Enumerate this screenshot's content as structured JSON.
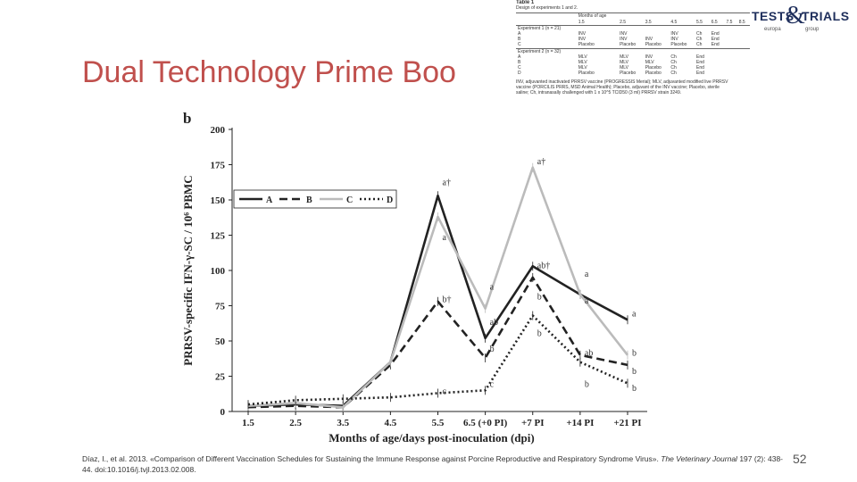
{
  "slide": {
    "title": "Dual Technology Prime Boo",
    "citation_prefix": "Díaz, I., et al. 2013. «Comparison of Different Vaccination Schedules for Sustaining the Immune Response against Porcine Reproductive and Respiratory Syndrome Virus».",
    "citation_journal": "The Veterinary Journal",
    "citation_suffix": "197 (2): 438-44. doi:10.1016/j.tvjl.2013.02.008.",
    "page_number": "52",
    "logo_text_1": "TESTS",
    "logo_amp": "&",
    "logo_text_2": "TRIALS",
    "logo_sub_1": "europa",
    "logo_sub_2": "group"
  },
  "table": {
    "title": "Table 1",
    "subtitle": "Design of experiments 1 and 2.",
    "months_header": "Months of age",
    "months": [
      "1.5",
      "2.5",
      "3.5",
      "4.5",
      "5.5",
      "6.5",
      "7.5",
      "8.5"
    ],
    "exp1_label": "Experiment 1 (n = 21)",
    "exp1_rows": [
      [
        "A",
        "INV",
        "INV",
        "",
        "INV",
        "Ch",
        "End"
      ],
      [
        "B",
        "INV",
        "INV",
        "INV",
        "INV",
        "Ch",
        "End"
      ],
      [
        "C",
        "Placebo",
        "Placebo",
        "Placebo",
        "Placebo",
        "Ch",
        "End"
      ]
    ],
    "exp2_label": "Experiment 2 (n = 32)",
    "exp2_rows": [
      [
        "A",
        "MLV",
        "MLV",
        "INV",
        "Ch",
        "End"
      ],
      [
        "B",
        "MLV",
        "MLV",
        "MLV",
        "Ch",
        "End"
      ],
      [
        "C",
        "MLV",
        "MLV",
        "Placebo",
        "Ch",
        "End"
      ],
      [
        "D",
        "Placebo",
        "Placebo",
        "Placebo",
        "Ch",
        "End"
      ]
    ],
    "footnote": "INV, adjuvanted inactivated PRRSV vaccine (PROGRESSIS Merial); MLV, adjuvanted modified live PRRSV vaccine (PORCILIS PRRS, MSD Animal Health); Placebo, adjuvant of the INV vaccine; Placebo, sterile saline; Ch, intranasally challenged with 1 x 10^5 TCID50 (3 ml) PRRSV strain 3249."
  },
  "chart_data": {
    "type": "line",
    "panel_label": "b",
    "xlabel": "Months of age/days post-inoculation (dpi)",
    "ylabel": "PRRSV-specific IFN-γ-SC / 10⁶ PBMC",
    "categories": [
      "1.5",
      "2.5",
      "3.5",
      "4.5",
      "5.5",
      "6.5 (+0 PI)",
      "+7 PI",
      "+14 PI",
      "+21 PI"
    ],
    "yticks": [
      "0",
      "25",
      "50",
      "75",
      "100",
      "125",
      "150",
      "175",
      "200"
    ],
    "ylim": [
      0,
      200
    ],
    "grid": false,
    "legend_position": "top-left",
    "series": [
      {
        "name": "A",
        "color": "#222222",
        "dash": "solid",
        "values": [
          4,
          5,
          4,
          35,
          153,
          52,
          103,
          83,
          65
        ]
      },
      {
        "name": "B",
        "color": "#222222",
        "dash": "dashed",
        "values": [
          3,
          4,
          3,
          33,
          78,
          38,
          95,
          40,
          33
        ]
      },
      {
        "name": "C",
        "color": "#bbbbbb",
        "dash": "solid",
        "values": [
          4,
          6,
          3,
          35,
          138,
          73,
          173,
          83,
          40
        ]
      },
      {
        "name": "D",
        "color": "#222222",
        "dash": "dotted",
        "values": [
          5,
          8,
          9,
          10,
          13,
          15,
          68,
          35,
          20
        ]
      }
    ],
    "annotations": [
      {
        "text": "a†",
        "x": "5.5",
        "y": 163
      },
      {
        "text": "a",
        "x": "5.5",
        "y": 124
      },
      {
        "text": "b†",
        "x": "5.5",
        "y": 80
      },
      {
        "text": "c",
        "x": "5.5",
        "y": 15
      },
      {
        "text": "a",
        "x": "6.5 (+0 PI)",
        "y": 89
      },
      {
        "text": "ab",
        "x": "6.5 (+0 PI)",
        "y": 64
      },
      {
        "text": "b",
        "x": "6.5 (+0 PI)",
        "y": 45
      },
      {
        "text": "c",
        "x": "6.5 (+0 PI)",
        "y": 20
      },
      {
        "text": "a†",
        "x": "+7 PI",
        "y": 178
      },
      {
        "text": "ab†",
        "x": "+7 PI",
        "y": 104
      },
      {
        "text": "b",
        "x": "+7 PI",
        "y": 82
      },
      {
        "text": "b",
        "x": "+7 PI",
        "y": 56
      },
      {
        "text": "a",
        "x": "+14 PI",
        "y": 98
      },
      {
        "text": "a",
        "x": "+14 PI",
        "y": 79
      },
      {
        "text": "ab",
        "x": "+14 PI",
        "y": 42
      },
      {
        "text": "b",
        "x": "+14 PI",
        "y": 20
      },
      {
        "text": "a",
        "x": "+21 PI",
        "y": 70
      },
      {
        "text": "b",
        "x": "+21 PI",
        "y": 42
      },
      {
        "text": "b",
        "x": "+21 PI",
        "y": 29
      },
      {
        "text": "b",
        "x": "+21 PI",
        "y": 17
      }
    ]
  }
}
